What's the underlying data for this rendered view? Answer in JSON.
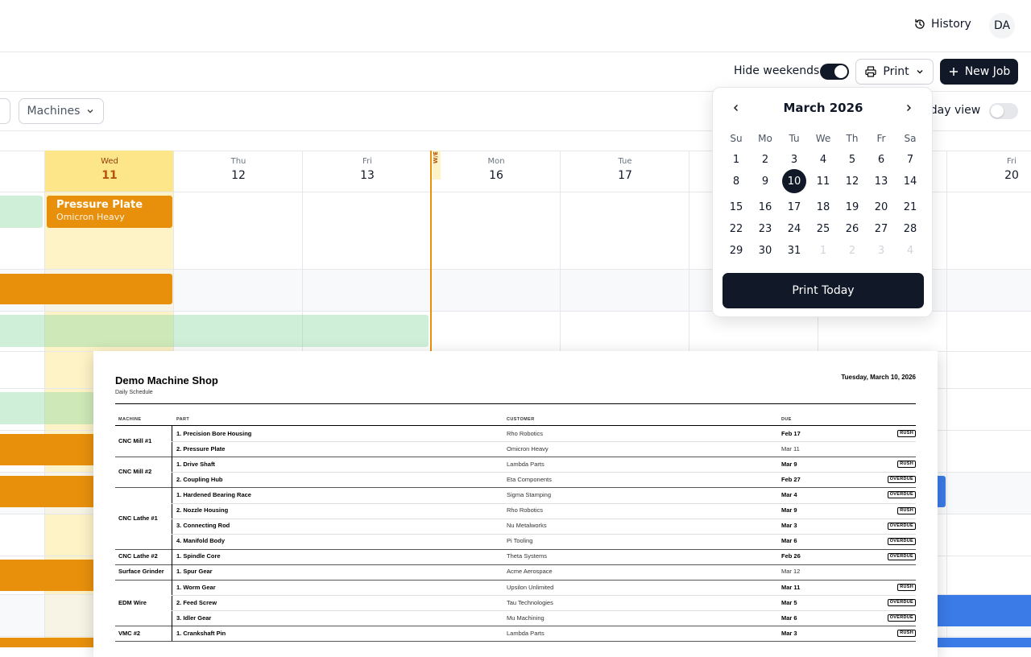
{
  "header": {
    "history": "History",
    "avatar": "DA"
  },
  "toolbar": {
    "hide_weekends": "Hide weekends",
    "print": "Print",
    "new_job": "New Job"
  },
  "filters": {
    "machines": "Machines",
    "today_view": "Today view"
  },
  "calendar": {
    "columns": [
      {
        "day": "Wed",
        "date": "11"
      },
      {
        "day": "Thu",
        "date": "12"
      },
      {
        "day": "Fri",
        "date": "13"
      },
      {
        "day": "Mon",
        "date": "16"
      },
      {
        "day": "Tue",
        "date": "17"
      },
      {
        "day": "Fri",
        "date": "20"
      }
    ],
    "weekend_marker": "W/E",
    "job": {
      "part": "Pressure Plate",
      "customer": "Omicron Heavy"
    }
  },
  "datepicker": {
    "month": "March 2026",
    "weekdays": [
      "Su",
      "Mo",
      "Tu",
      "We",
      "Th",
      "Fr",
      "Sa"
    ],
    "weeks": [
      [
        1,
        2,
        3,
        4,
        5,
        6,
        7
      ],
      [
        8,
        9,
        10,
        11,
        12,
        13,
        14
      ],
      [
        15,
        16,
        17,
        18,
        19,
        20,
        21
      ],
      [
        22,
        23,
        24,
        25,
        26,
        27,
        28
      ],
      [
        29,
        30,
        31
      ]
    ],
    "next_month_days": [
      1,
      2,
      3,
      4
    ],
    "selected_day": 10,
    "button": "Print Today"
  },
  "document": {
    "title": "Demo Machine Shop",
    "subtitle": "Daily Schedule",
    "date": "Tuesday, March 10, 2026",
    "columns": [
      "MACHINE",
      "PART",
      "CUSTOMER",
      "DUE"
    ],
    "groups": [
      {
        "machine": "CNC Mill #1",
        "jobs": [
          {
            "part": "1. Precision Bore Housing",
            "customer": "Rho Robotics",
            "due": "Feb 17",
            "tag": "RUSH"
          },
          {
            "part": "2. Pressure Plate",
            "customer": "Omicron Heavy",
            "due": "Mar 11"
          }
        ]
      },
      {
        "machine": "CNC Mill #2",
        "jobs": [
          {
            "part": "1. Drive Shaft",
            "customer": "Lambda Parts",
            "due": "Mar 9",
            "tag": "RUSH"
          },
          {
            "part": "2. Coupling Hub",
            "customer": "Eta Components",
            "due": "Feb 27",
            "tag": "OVERDUE"
          }
        ]
      },
      {
        "machine": "CNC Lathe #1",
        "jobs": [
          {
            "part": "1. Hardened Bearing Race",
            "customer": "Sigma Stamping",
            "due": "Mar 4",
            "tag": "OVERDUE"
          },
          {
            "part": "2. Nozzle Housing",
            "customer": "Rho Robotics",
            "due": "Mar 9",
            "tag": "RUSH"
          },
          {
            "part": "3. Connecting Rod",
            "customer": "Nu Metalworks",
            "due": "Mar 3",
            "tag": "OVERDUE"
          },
          {
            "part": "4. Manifold Body",
            "customer": "Pi Tooling",
            "due": "Mar 6",
            "tag": "OVERDUE"
          }
        ]
      },
      {
        "machine": "CNC Lathe #2",
        "jobs": [
          {
            "part": "1. Spindle Core",
            "customer": "Theta Systems",
            "due": "Feb 26",
            "tag": "OVERDUE"
          }
        ]
      },
      {
        "machine": "Surface Grinder",
        "jobs": [
          {
            "part": "1. Spur Gear",
            "customer": "Acme Aerospace",
            "due": "Mar 12"
          }
        ]
      },
      {
        "machine": "EDM Wire",
        "jobs": [
          {
            "part": "1. Worm Gear",
            "customer": "Upsilon Unlimited",
            "due": "Mar 11",
            "tag": "RUSH"
          },
          {
            "part": "2. Feed Screw",
            "customer": "Tau Technologies",
            "due": "Mar 5",
            "tag": "OVERDUE"
          },
          {
            "part": "3. Idler Gear",
            "customer": "Mu Machining",
            "due": "Mar 6",
            "tag": "OVERDUE"
          }
        ]
      },
      {
        "machine": "VMC #2",
        "jobs": [
          {
            "part": "1. Crankshaft Pin",
            "customer": "Lambda Parts",
            "due": "Mar 3",
            "tag": "RUSH"
          }
        ]
      }
    ]
  }
}
